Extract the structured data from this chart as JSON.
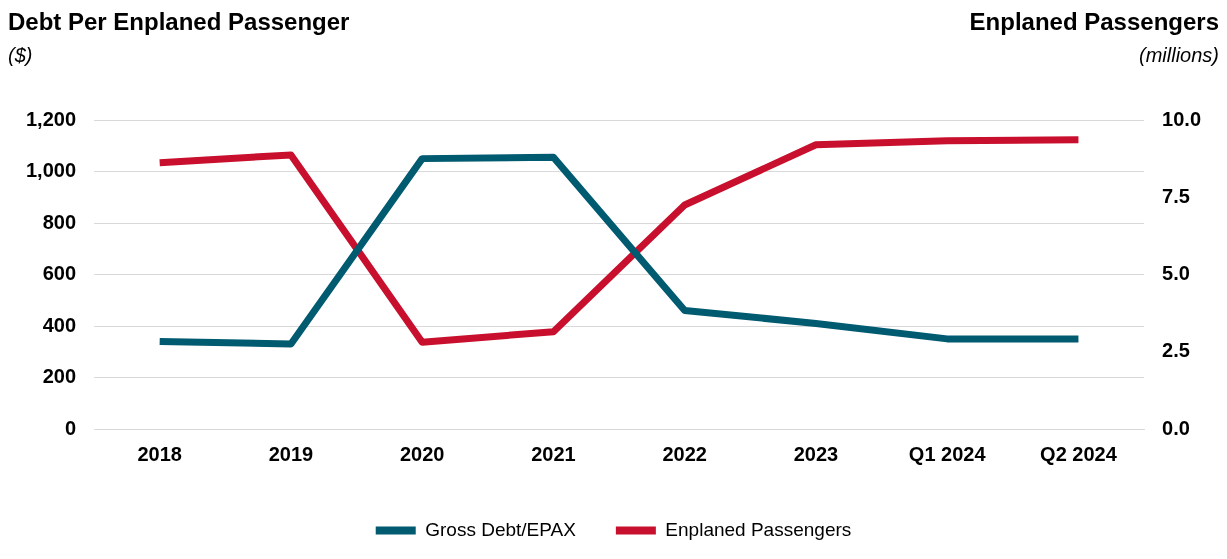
{
  "chart_data": {
    "type": "line",
    "ylabel": "Debt Per Enplaned Passenger",
    "y2label": "Enplaned Passengers",
    "annotations": [
      "($)",
      "(millions)"
    ],
    "categories": [
      "2018",
      "2019",
      "2020",
      "2021",
      "2022",
      "2023",
      "Q1 2024",
      "Q2 2024"
    ],
    "series": [
      {
        "name": "Gross Debt/EPAX",
        "color": "#005a70",
        "values": [
          340,
          330,
          1050,
          1055,
          460,
          410,
          350,
          350
        ]
      },
      {
        "name": "Enplaned Passengers",
        "color": "#c8102e",
        "axis": "y2",
        "values": [
          8.62,
          8.87,
          2.81,
          3.15,
          7.25,
          9.2,
          9.33,
          9.36
        ]
      }
    ],
    "ylim": [
      0,
      1200
    ],
    "yticks": [
      0,
      200,
      400,
      600,
      800,
      {
        "value": 1000,
        "label": "1,000"
      },
      {
        "value": 1200,
        "label": "1,200"
      }
    ],
    "y2lim": [
      0,
      10
    ],
    "y2ticks": [
      {
        "value": 0,
        "label": "0.0"
      },
      {
        "value": 2.5,
        "label": "2.5"
      },
      {
        "value": 5,
        "label": "5.0"
      },
      {
        "value": 7.5,
        "label": "7.5"
      },
      {
        "value": 10,
        "label": "10.0"
      }
    ],
    "grid": "y",
    "legend": "bottom",
    "marker": "none",
    "line_style": "solid"
  }
}
